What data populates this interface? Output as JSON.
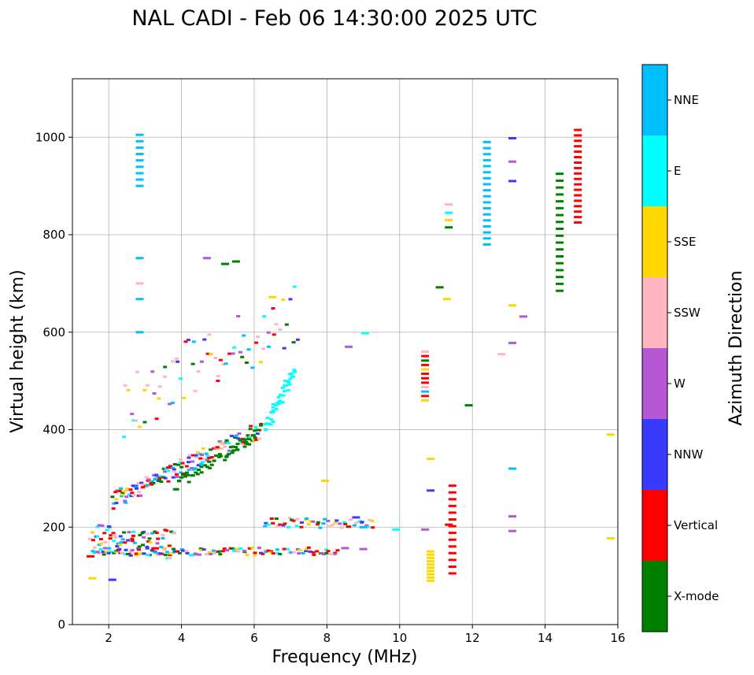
{
  "chart_data": {
    "type": "scatter",
    "title": "NAL CADI - Feb 06 14:30:00 2025 UTC",
    "xlabel": "Frequency (MHz)",
    "ylabel": "Virtual height (km)",
    "xlim": [
      1,
      16
    ],
    "ylim": [
      0,
      1120
    ],
    "xticks": [
      2,
      4,
      6,
      8,
      10,
      12,
      14,
      16
    ],
    "yticks": [
      0,
      200,
      400,
      600,
      800,
      1000
    ],
    "grid": true,
    "colorbar": {
      "title": "Azimuth Direction",
      "categories": [
        {
          "name": "X-mode",
          "color": "#008000"
        },
        {
          "name": "Vertical",
          "color": "#ff0000"
        },
        {
          "name": "NNW",
          "color": "#3a3aff"
        },
        {
          "name": "W",
          "color": "#b657d6"
        },
        {
          "name": "SSW",
          "color": "#ffb6c1"
        },
        {
          "name": "SSE",
          "color": "#ffd700"
        },
        {
          "name": "E",
          "color": "#00ffff"
        },
        {
          "name": "NNE",
          "color": "#00bfff"
        }
      ]
    },
    "segments": [
      {
        "label": "O-trace low band (F region)",
        "dir": "mixed",
        "f0": 1.6,
        "f1": 8.3,
        "h0": 150,
        "h1": 150,
        "n": 120,
        "hs": 8
      },
      {
        "label": "E/F1 lower echoes",
        "dir": "mixed",
        "f0": 1.5,
        "f1": 3.8,
        "h0": 175,
        "h1": 165,
        "n": 90,
        "hs": 30
      },
      {
        "label": "F-trace rising",
        "dir": "mixed",
        "f0": 2.1,
        "f1": 6.2,
        "h0": 255,
        "h1": 400,
        "n": 170,
        "hs": 18
      },
      {
        "label": "F-trace x-mode",
        "dir": "X-mode",
        "f0": 3.8,
        "f1": 6.1,
        "h0": 285,
        "h1": 390,
        "n": 45,
        "hs": 12
      },
      {
        "label": "F-trace cusp (E)",
        "dir": "E",
        "f0": 6.3,
        "f1": 7.1,
        "h0": 400,
        "h1": 520,
        "n": 40,
        "hs": 14
      },
      {
        "label": "Scattered upper echoes",
        "dir": "mixed",
        "f0": 2.4,
        "f1": 7.2,
        "h0": 450,
        "h1": 640,
        "n": 70,
        "hs": 70
      },
      {
        "label": "Band near 210 km",
        "dir": "mixed",
        "f0": 6.3,
        "f1": 9.3,
        "h0": 210,
        "h1": 205,
        "n": 50,
        "hs": 10
      },
      {
        "label": "Column at 2.85 MHz",
        "dir": "NNE",
        "f0": 2.85,
        "f1": 2.85,
        "h0": 900,
        "h1": 1005,
        "n": 9,
        "hs": 0
      },
      {
        "label": "Column at 10.7 MHz",
        "dir": "mixed",
        "f0": 10.7,
        "f1": 10.7,
        "h0": 460,
        "h1": 560,
        "n": 12,
        "hs": 0
      },
      {
        "label": "Column near 10.85 MHz",
        "dir": "SSE",
        "f0": 10.85,
        "f1": 10.85,
        "h0": 90,
        "h1": 150,
        "n": 10,
        "hs": 0
      },
      {
        "label": "Column at 12.4 MHz",
        "dir": "NNE",
        "f0": 12.4,
        "f1": 12.4,
        "h0": 780,
        "h1": 990,
        "n": 18,
        "hs": 0
      },
      {
        "label": "Column at 14.4 MHz",
        "dir": "X-mode",
        "f0": 14.4,
        "f1": 14.4,
        "h0": 685,
        "h1": 925,
        "n": 18,
        "hs": 0
      },
      {
        "label": "Column at 14.9 MHz",
        "dir": "Vertical",
        "f0": 14.9,
        "f1": 14.9,
        "h0": 825,
        "h1": 1015,
        "n": 18,
        "hs": 0
      },
      {
        "label": "Column at 11.45 MHz",
        "dir": "Vertical",
        "f0": 11.45,
        "f1": 11.45,
        "h0": 105,
        "h1": 285,
        "n": 14,
        "hs": 0
      }
    ],
    "points": [
      {
        "f": 6.5,
        "h": 672,
        "dir": "SSE"
      },
      {
        "f": 9.05,
        "h": 598,
        "dir": "E"
      },
      {
        "f": 8.6,
        "h": 570,
        "dir": "W"
      },
      {
        "f": 11.9,
        "h": 450,
        "dir": "X-mode"
      },
      {
        "f": 11.1,
        "h": 692,
        "dir": "X-mode"
      },
      {
        "f": 11.3,
        "h": 668,
        "dir": "SSE"
      },
      {
        "f": 11.35,
        "h": 862,
        "dir": "SSW"
      },
      {
        "f": 11.35,
        "h": 845,
        "dir": "E"
      },
      {
        "f": 11.35,
        "h": 830,
        "dir": "SSE"
      },
      {
        "f": 11.35,
        "h": 815,
        "dir": "X-mode"
      },
      {
        "f": 10.85,
        "h": 340,
        "dir": "SSE"
      },
      {
        "f": 10.85,
        "h": 275,
        "dir": "NNW"
      },
      {
        "f": 11.35,
        "h": 205,
        "dir": "Vertical"
      },
      {
        "f": 10.7,
        "h": 195,
        "dir": "W"
      },
      {
        "f": 9.9,
        "h": 195,
        "dir": "E"
      },
      {
        "f": 7.95,
        "h": 295,
        "dir": "SSE"
      },
      {
        "f": 12.8,
        "h": 555,
        "dir": "SSW"
      },
      {
        "f": 13.1,
        "h": 578,
        "dir": "W"
      },
      {
        "f": 13.1,
        "h": 320,
        "dir": "NNE"
      },
      {
        "f": 13.1,
        "h": 222,
        "dir": "W"
      },
      {
        "f": 13.1,
        "h": 192,
        "dir": "W"
      },
      {
        "f": 13.1,
        "h": 655,
        "dir": "SSE"
      },
      {
        "f": 13.4,
        "h": 632,
        "dir": "W"
      },
      {
        "f": 13.1,
        "h": 950,
        "dir": "W"
      },
      {
        "f": 13.1,
        "h": 910,
        "dir": "NNW"
      },
      {
        "f": 13.1,
        "h": 998,
        "dir": "NNW"
      },
      {
        "f": 15.8,
        "h": 390,
        "dir": "SSE"
      },
      {
        "f": 15.8,
        "h": 177,
        "dir": "SSE"
      },
      {
        "f": 8.8,
        "h": 220,
        "dir": "NNW"
      },
      {
        "f": 9.0,
        "h": 200,
        "dir": "NNE"
      },
      {
        "f": 8.5,
        "h": 157,
        "dir": "W"
      },
      {
        "f": 9.0,
        "h": 155,
        "dir": "W"
      },
      {
        "f": 4.7,
        "h": 752,
        "dir": "W"
      },
      {
        "f": 5.2,
        "h": 740,
        "dir": "X-mode"
      },
      {
        "f": 5.5,
        "h": 745,
        "dir": "X-mode"
      },
      {
        "f": 2.85,
        "h": 752,
        "dir": "NNE"
      },
      {
        "f": 2.85,
        "h": 700,
        "dir": "SSW"
      },
      {
        "f": 2.85,
        "h": 668,
        "dir": "NNE"
      },
      {
        "f": 2.85,
        "h": 600,
        "dir": "NNE"
      },
      {
        "f": 1.5,
        "h": 140,
        "dir": "Vertical"
      },
      {
        "f": 1.55,
        "h": 95,
        "dir": "SSE"
      },
      {
        "f": 2.1,
        "h": 92,
        "dir": "NNW"
      }
    ]
  }
}
